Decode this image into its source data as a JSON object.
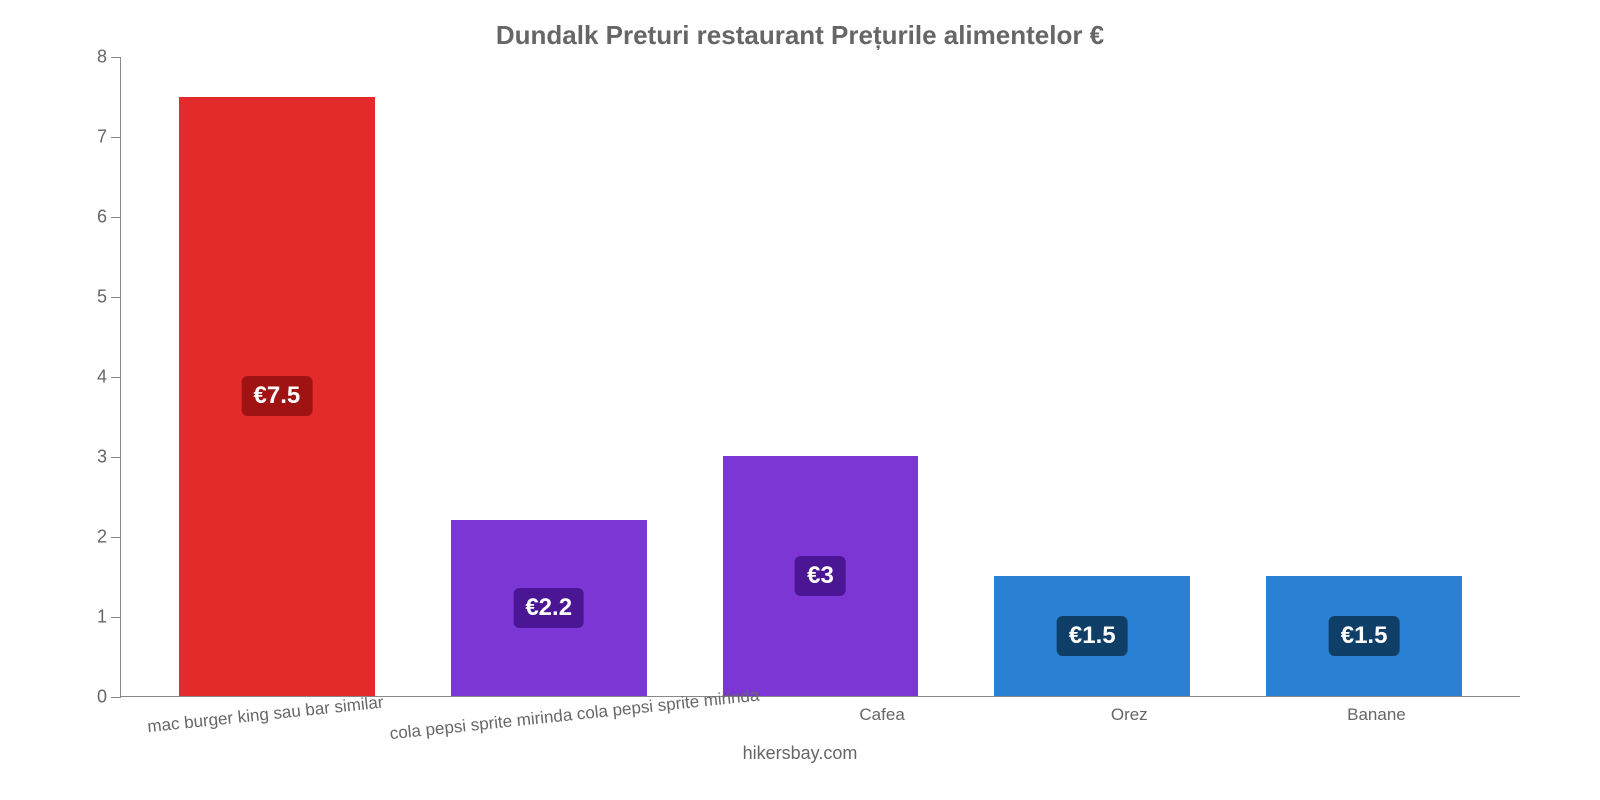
{
  "chart": {
    "type": "bar",
    "title": "Dundalk Preturi restaurant Prețurile alimentelor €",
    "title_color": "#666666",
    "title_fontsize": 26,
    "background_color": "#ffffff",
    "footer_text": "hikersbay.com",
    "footer_color": "#666666",
    "axis_color": "#888888",
    "label_fontsize": 18,
    "xlabel_fontsize": 17,
    "xlabel_color": "#666666",
    "ylim": [
      0,
      8
    ],
    "yticks": [
      0,
      1,
      2,
      3,
      4,
      5,
      6,
      7,
      8
    ],
    "bar_width_pct": 72,
    "currency_prefix": "€",
    "value_badge_fontsize": 24,
    "value_badge_text_color": "#ffffff",
    "value_badge_radius": 6,
    "categories": [
      {
        "label": "mac burger king sau bar similar",
        "rotated": true
      },
      {
        "label": "cola pepsi sprite mirinda cola pepsi sprite mirinda",
        "rotated": true
      },
      {
        "label": "Cafea",
        "rotated": false
      },
      {
        "label": "Orez",
        "rotated": false
      },
      {
        "label": "Banane",
        "rotated": false
      }
    ],
    "values": [
      7.5,
      2.2,
      3,
      1.5,
      1.5
    ],
    "display_values": [
      "€7.5",
      "€2.2",
      "€3",
      "€1.5",
      "€1.5"
    ],
    "bar_colors": [
      "#e32b2b",
      "#7c36d6",
      "#7c36d6",
      "#2a80d2",
      "#2a80d2"
    ],
    "badge_colors": [
      "#a01313",
      "#4a1693",
      "#4a1693",
      "#0f3e66",
      "#0f3e66"
    ],
    "badge_position": "center"
  }
}
